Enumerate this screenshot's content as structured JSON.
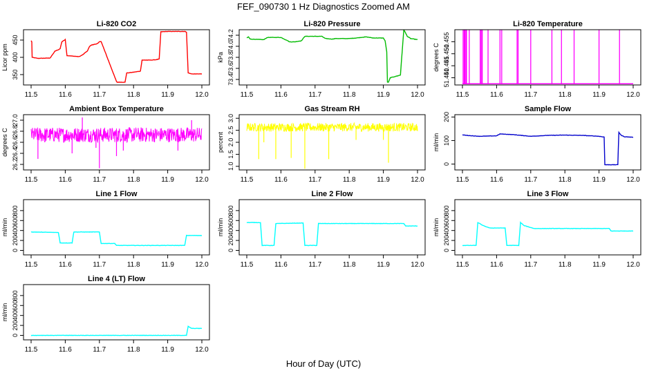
{
  "figure": {
    "title": "FEF_090730  1 Hz Diagnostics Zoomed AM",
    "xlabel": "Hour of Day (UTC)"
  },
  "chart_data": [
    {
      "type": "line",
      "title": "Li-820 CO2",
      "ylabel": "Licor ppm",
      "color": "#ff0000",
      "xlim": [
        11.5,
        12.0
      ],
      "xticks": [
        "11.5",
        "11.6",
        "11.7",
        "11.8",
        "11.9",
        "12.0"
      ],
      "ylim": [
        320,
        480
      ],
      "yticks": [
        {
          "v": 350,
          "label": "350"
        },
        {
          "v": 400,
          "label": "400"
        },
        {
          "v": 450,
          "label": "450"
        }
      ],
      "series": [
        {
          "x": [
            11.5,
            11.502,
            11.503,
            11.52,
            11.555,
            11.557,
            11.57,
            11.575,
            11.58,
            11.585,
            11.59,
            11.598,
            11.6,
            11.605,
            11.64,
            11.645,
            11.652,
            11.66,
            11.665,
            11.67,
            11.675,
            11.695,
            11.7,
            11.705,
            11.75,
            11.752,
            11.76,
            11.775,
            11.78,
            11.785,
            11.8,
            11.82,
            11.825,
            11.85,
            11.865,
            11.875,
            11.88,
            11.9,
            11.925,
            11.95,
            11.955,
            11.96,
            11.97,
            11.99,
            12.0
          ],
          "y": [
            448,
            445,
            400,
            397,
            398,
            400,
            418,
            420,
            422,
            425,
            445,
            450,
            452,
            405,
            402,
            404,
            408,
            415,
            418,
            430,
            435,
            440,
            445,
            446,
            330,
            328,
            328,
            328,
            355,
            355,
            357,
            360,
            392,
            392,
            393,
            395,
            474,
            475,
            475,
            475,
            473,
            355,
            352,
            352,
            352
          ]
        }
      ]
    },
    {
      "type": "line",
      "title": "Li-820 Pressure",
      "ylabel": "kPa",
      "color": "#00bb00",
      "xlim": [
        11.5,
        12.0
      ],
      "xticks": [
        "11.5",
        "11.6",
        "11.7",
        "11.8",
        "11.9",
        "12.0"
      ],
      "ylim": [
        73.3,
        74.3
      ],
      "yticks": [
        {
          "v": 73.4,
          "label": "73.4"
        },
        {
          "v": 73.6,
          "label": "73.6"
        },
        {
          "v": 73.8,
          "label": "73.8"
        },
        {
          "v": 74.0,
          "label": "74.0"
        },
        {
          "v": 74.2,
          "label": "74.2"
        }
      ],
      "series": [
        {
          "x": [
            11.5,
            11.505,
            11.51,
            11.55,
            11.56,
            11.6,
            11.62,
            11.625,
            11.64,
            11.66,
            11.67,
            11.72,
            11.73,
            11.75,
            11.76,
            11.8,
            11.82,
            11.85,
            11.87,
            11.9,
            11.905,
            11.91,
            11.912,
            11.915,
            11.92,
            11.945,
            11.95,
            11.955,
            11.96,
            11.97,
            11.98,
            12.0
          ],
          "y": [
            74.15,
            74.17,
            74.13,
            74.12,
            74.16,
            74.16,
            74.1,
            74.08,
            74.08,
            74.1,
            74.18,
            74.18,
            74.14,
            74.13,
            74.14,
            74.14,
            74.15,
            74.17,
            74.15,
            74.15,
            74.1,
            73.9,
            73.35,
            73.35,
            73.43,
            73.47,
            73.48,
            73.9,
            74.3,
            74.18,
            74.14,
            74.12
          ]
        }
      ]
    },
    {
      "type": "line",
      "title": "Li-820 Temperature",
      "ylabel": "degrees C",
      "color": "#ff00ff",
      "xlim": [
        11.5,
        12.0
      ],
      "xticks": [
        "11.5",
        "11.6",
        "11.7",
        "11.8",
        "11.9",
        "12.0"
      ],
      "ylim": [
        51.437,
        51.46
      ],
      "yticks": [
        {
          "v": 51.44,
          "label": "51.440"
        },
        {
          "v": 51.445,
          "label": "51.445"
        },
        {
          "v": 51.45,
          "label": "51.450"
        },
        {
          "v": 51.455,
          "label": "51.455"
        }
      ],
      "baseline": 51.4375,
      "spikes": [
        11.502,
        11.505,
        11.507,
        11.51,
        11.512,
        11.52,
        11.552,
        11.555,
        11.558,
        11.575,
        11.61,
        11.615,
        11.66,
        11.663,
        11.7,
        11.762,
        11.79,
        11.827,
        11.9,
        11.96
      ],
      "spike_top": 51.46
    },
    {
      "type": "line",
      "title": "Ambient Box Temperature",
      "ylabel": "degrees C",
      "color": "#ff00ff",
      "xlim": [
        11.5,
        12.0
      ],
      "xticks": [
        "11.5",
        "11.6",
        "11.7",
        "11.8",
        "11.9",
        "12.0"
      ],
      "ylim": [
        26.1,
        27.1
      ],
      "yticks": [
        {
          "v": 26.2,
          "label": "26.2"
        },
        {
          "v": 26.4,
          "label": "26.4"
        },
        {
          "v": 26.6,
          "label": "26.6"
        },
        {
          "v": 26.8,
          "label": "26.8"
        },
        {
          "v": 27.0,
          "label": "27.0"
        }
      ],
      "band": {
        "low": 26.6,
        "high": 26.87
      },
      "outliers": [
        [
          11.52,
          26.3
        ],
        [
          11.54,
          26.6
        ],
        [
          11.62,
          26.4
        ],
        [
          11.69,
          26.5
        ],
        [
          11.7,
          26.13
        ],
        [
          11.75,
          26.35
        ],
        [
          11.77,
          26.45
        ],
        [
          11.93,
          26.45
        ],
        [
          11.97,
          27.0
        ],
        [
          11.65,
          27.05
        ]
      ]
    },
    {
      "type": "line",
      "title": "Gas Stream RH",
      "ylabel": "percent",
      "color": "#ffff00",
      "xlim": [
        11.5,
        12.0
      ],
      "xticks": [
        "11.5",
        "11.6",
        "11.7",
        "11.8",
        "11.9",
        "12.0"
      ],
      "ylim": [
        0.85,
        3.15
      ],
      "yticks": [
        {
          "v": 1.0,
          "label": "1.0"
        },
        {
          "v": 1.5,
          "label": "1.5"
        },
        {
          "v": 2.0,
          "label": "2.0"
        },
        {
          "v": 2.5,
          "label": "2.5"
        },
        {
          "v": 3.0,
          "label": "3.0"
        }
      ],
      "band": {
        "low": 2.45,
        "high": 2.8
      },
      "dips": [
        [
          11.535,
          1.3
        ],
        [
          11.55,
          2.0
        ],
        [
          11.585,
          1.3
        ],
        [
          11.63,
          1.35
        ],
        [
          11.67,
          0.9
        ],
        [
          11.74,
          1.3
        ],
        [
          11.82,
          2.1
        ],
        [
          11.915,
          1.15
        ],
        [
          11.9,
          2.1
        ]
      ]
    },
    {
      "type": "line",
      "title": "Sample Flow",
      "ylabel": "ml/min",
      "color": "#0000cc",
      "xlim": [
        11.5,
        12.0
      ],
      "xticks": [
        "11.5",
        "11.6",
        "11.7",
        "11.8",
        "11.9",
        "12.0"
      ],
      "ylim": [
        -25,
        210
      ],
      "yticks": [
        {
          "v": 0,
          "label": "0"
        },
        {
          "v": 100,
          "label": "100"
        },
        {
          "v": 200,
          "label": "200"
        }
      ],
      "series": [
        {
          "x": [
            11.5,
            11.52,
            11.55,
            11.6,
            11.61,
            11.65,
            11.7,
            11.75,
            11.8,
            11.85,
            11.9,
            11.915,
            11.917,
            11.95,
            11.955,
            11.958,
            11.965,
            11.975,
            12.0
          ],
          "y": [
            124,
            121,
            118,
            120,
            128,
            125,
            118,
            122,
            123,
            122,
            118,
            115,
            -3,
            -3,
            -3,
            135,
            122,
            116,
            114
          ]
        }
      ]
    },
    {
      "type": "line",
      "title": "Line 1 Flow",
      "ylabel": "ml/min",
      "color": "#00ffff",
      "xlim": [
        11.5,
        12.0
      ],
      "xticks": [
        "11.5",
        "11.6",
        "11.7",
        "11.8",
        "11.9",
        "12.0"
      ],
      "ylim": [
        -90,
        1020
      ],
      "yticks": [
        {
          "v": 0,
          "label": "0"
        },
        {
          "v": 200,
          "label": "200"
        },
        {
          "v": 400,
          "label": "400"
        },
        {
          "v": 600,
          "label": "600"
        },
        {
          "v": 800,
          "label": "800"
        }
      ],
      "series": [
        {
          "x": [
            11.5,
            11.58,
            11.585,
            11.62,
            11.625,
            11.7,
            11.705,
            11.745,
            11.75,
            11.95,
            11.955,
            12.0
          ],
          "y": [
            370,
            360,
            150,
            150,
            370,
            370,
            140,
            140,
            100,
            100,
            300,
            300
          ]
        }
      ]
    },
    {
      "type": "line",
      "title": "Line 2 Flow",
      "ylabel": "ml/min",
      "color": "#00ffff",
      "xlim": [
        11.5,
        12.0
      ],
      "xticks": [
        "11.5",
        "11.6",
        "11.7",
        "11.8",
        "11.9",
        "12.0"
      ],
      "ylim": [
        -90,
        1020
      ],
      "yticks": [
        {
          "v": 0,
          "label": "0"
        },
        {
          "v": 200,
          "label": "200"
        },
        {
          "v": 400,
          "label": "400"
        },
        {
          "v": 600,
          "label": "600"
        },
        {
          "v": 800,
          "label": "800"
        }
      ],
      "series": [
        {
          "x": [
            11.5,
            11.54,
            11.545,
            11.58,
            11.585,
            11.665,
            11.67,
            11.705,
            11.71,
            11.96,
            11.965,
            12.0
          ],
          "y": [
            560,
            560,
            100,
            100,
            540,
            550,
            100,
            100,
            540,
            540,
            490,
            490
          ]
        }
      ]
    },
    {
      "type": "line",
      "title": "Line 3 Flow",
      "ylabel": "ml/min",
      "color": "#00ffff",
      "xlim": [
        11.5,
        12.0
      ],
      "xticks": [
        "11.5",
        "11.6",
        "11.7",
        "11.8",
        "11.9",
        "12.0"
      ],
      "ylim": [
        -90,
        1020
      ],
      "yticks": [
        {
          "v": 0,
          "label": "0"
        },
        {
          "v": 200,
          "label": "200"
        },
        {
          "v": 400,
          "label": "400"
        },
        {
          "v": 600,
          "label": "600"
        },
        {
          "v": 800,
          "label": "800"
        }
      ],
      "series": [
        {
          "x": [
            11.5,
            11.54,
            11.545,
            11.56,
            11.58,
            11.625,
            11.63,
            11.665,
            11.67,
            11.68,
            11.71,
            11.93,
            11.935,
            12.0
          ],
          "y": [
            100,
            100,
            560,
            500,
            450,
            450,
            100,
            100,
            560,
            500,
            440,
            440,
            390,
            390
          ]
        }
      ]
    },
    {
      "type": "line",
      "title": "Line 4 (LT) Flow",
      "ylabel": "ml/min",
      "color": "#00ffff",
      "xlim": [
        11.5,
        12.0
      ],
      "xticks": [
        "11.5",
        "11.6",
        "11.7",
        "11.8",
        "11.9",
        "12.0"
      ],
      "ylim": [
        -90,
        1020
      ],
      "yticks": [
        {
          "v": 0,
          "label": "0"
        },
        {
          "v": 200,
          "label": "200"
        },
        {
          "v": 400,
          "label": "400"
        },
        {
          "v": 600,
          "label": "600"
        },
        {
          "v": 800,
          "label": "800"
        }
      ],
      "series": [
        {
          "x": [
            11.5,
            11.955,
            11.96,
            11.97,
            12.0
          ],
          "y": [
            0,
            0,
            180,
            140,
            140
          ]
        }
      ]
    }
  ]
}
